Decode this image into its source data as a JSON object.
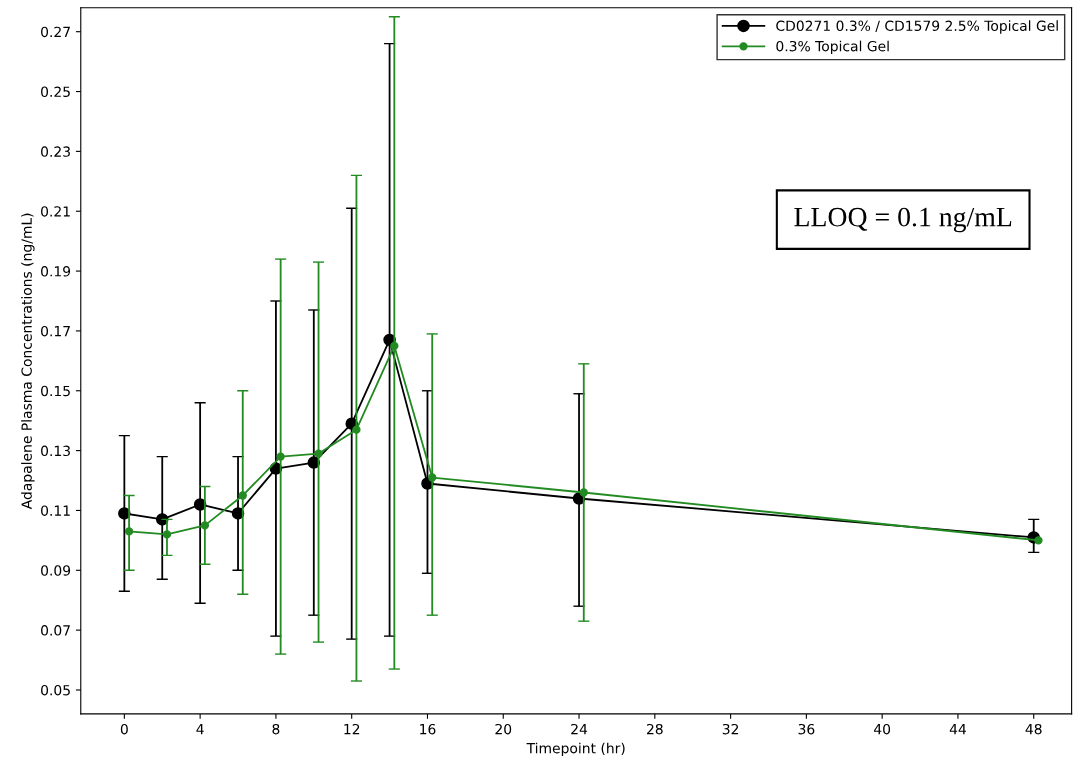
{
  "chart_data": {
    "type": "line",
    "xlabel": "Timepoint (hr)",
    "ylabel": "Adapalene Plasma Concentrations (ng/mL)",
    "annotations": [
      "LLOQ = 0.1 ng/mL"
    ],
    "xlim": [
      -2.3,
      50
    ],
    "xticks": [
      0,
      4,
      8,
      12,
      16,
      20,
      24,
      28,
      32,
      36,
      40,
      44,
      48
    ],
    "ylim": [
      0.042,
      0.278
    ],
    "yticks": [
      0.05,
      0.07,
      0.09,
      0.11,
      0.13,
      0.15,
      0.17,
      0.19,
      0.21,
      0.23,
      0.25,
      0.27
    ],
    "grid": false,
    "legend": "top right",
    "marker": "circle",
    "line_style": "solid",
    "series": [
      {
        "name": "CD0271 0.3% / CD1579 2.5% Topical Gel",
        "color": "#000000",
        "x": [
          0,
          2,
          4,
          6,
          8,
          10,
          12,
          14,
          16,
          24,
          48
        ],
        "values": [
          0.109,
          0.107,
          0.112,
          0.109,
          0.124,
          0.126,
          0.139,
          0.167,
          0.119,
          0.114,
          0.101
        ],
        "errors": [
          [
            0.083,
            0.135
          ],
          [
            0.087,
            0.128
          ],
          [
            0.079,
            0.146
          ],
          [
            0.09,
            0.128
          ],
          [
            0.068,
            0.18
          ],
          [
            0.075,
            0.177
          ],
          [
            0.067,
            0.211
          ],
          [
            0.068,
            0.266
          ],
          [
            0.089,
            0.15
          ],
          [
            0.078,
            0.149
          ],
          [
            0.096,
            0.107
          ]
        ]
      },
      {
        "name": "0.3% Topical Gel",
        "color": "#228b22",
        "x": [
          0.25,
          2.25,
          4.25,
          6.25,
          8.25,
          10.25,
          12.25,
          14.25,
          16.25,
          24.25,
          48.25
        ],
        "values": [
          0.103,
          0.102,
          0.105,
          0.115,
          0.128,
          0.129,
          0.137,
          0.165,
          0.121,
          0.116,
          0.1
        ],
        "errors": [
          [
            0.09,
            0.115
          ],
          [
            0.095,
            0.107
          ],
          [
            0.092,
            0.118
          ],
          [
            0.082,
            0.15
          ],
          [
            0.062,
            0.194
          ],
          [
            0.066,
            0.193
          ],
          [
            0.053,
            0.222
          ],
          [
            0.057,
            0.275
          ],
          [
            0.075,
            0.169
          ],
          [
            0.073,
            0.159
          ],
          null
        ]
      }
    ]
  }
}
